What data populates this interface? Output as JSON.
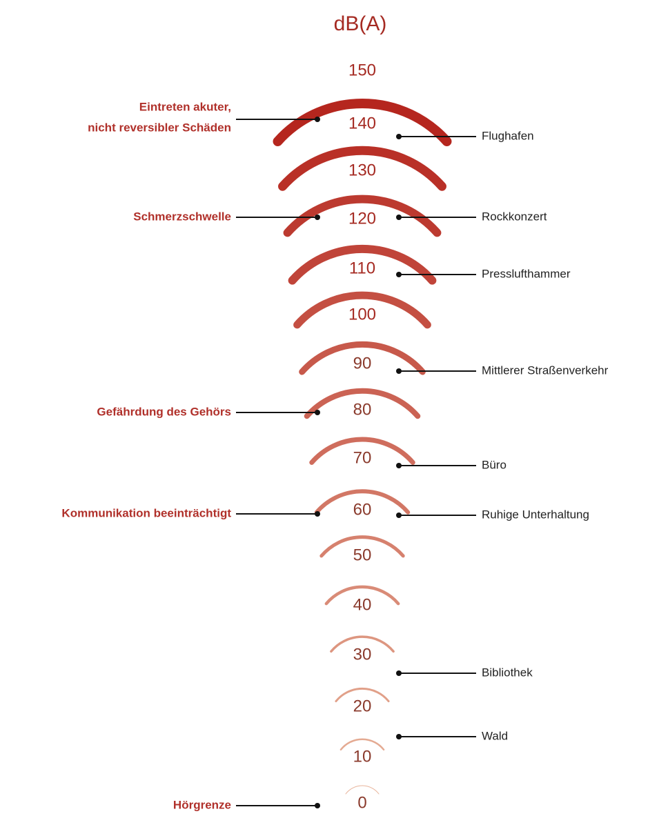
{
  "title": "dB(A)",
  "levels": [
    "150",
    "140",
    "130",
    "120",
    "110",
    "100",
    "90",
    "80",
    "70",
    "60",
    "50",
    "40",
    "30",
    "20",
    "10",
    "0"
  ],
  "left_annotations": [
    {
      "lines": [
        "Eintreten akuter,",
        "nicht reversibler Schäden"
      ]
    },
    {
      "lines": [
        "Schmerzschwelle"
      ]
    },
    {
      "lines": [
        "Gefährdung des Gehörs"
      ]
    },
    {
      "lines": [
        "Kommunikation beeinträchtigt"
      ]
    },
    {
      "lines": [
        "Hörgrenze"
      ]
    }
  ],
  "right_annotations": [
    {
      "label": "Flughafen"
    },
    {
      "label": "Rockkonzert"
    },
    {
      "label": "Presslufthammer"
    },
    {
      "label": "Mittlerer Straßenverkehr"
    },
    {
      "label": "Büro"
    },
    {
      "label": "Ruhige Unterhaltung"
    },
    {
      "label": "Bibliothek"
    },
    {
      "label": "Wald"
    }
  ]
}
